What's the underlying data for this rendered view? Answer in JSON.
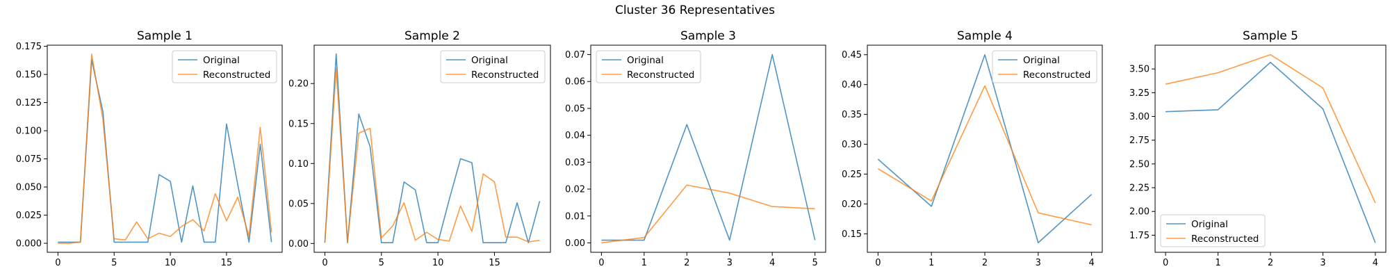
{
  "figure": {
    "title": "Cluster 36 Representatives"
  },
  "colors": {
    "original": "#1f77b4",
    "reconstructed": "#ff7f0e"
  },
  "chart_data": [
    {
      "type": "line",
      "title": "Sample 1",
      "legend": "top-right",
      "x": [
        0,
        1,
        2,
        3,
        4,
        5,
        6,
        7,
        8,
        9,
        10,
        11,
        12,
        13,
        14,
        15,
        16,
        17,
        18,
        19
      ],
      "xlim": [
        -0.95,
        19.95
      ],
      "ylim": [
        -0.008,
        0.176
      ],
      "xticks": [
        0,
        5,
        10,
        15
      ],
      "yticks": [
        0.0,
        0.025,
        0.05,
        0.075,
        0.1,
        0.125,
        0.15,
        0.175
      ],
      "ytick_decimals": 3,
      "series": [
        {
          "name": "Original",
          "values": [
            0.001,
            0.001,
            0.001,
            0.163,
            0.117,
            0.001,
            0.001,
            0.001,
            0.001,
            0.061,
            0.055,
            0.001,
            0.051,
            0.001,
            0.001,
            0.106,
            0.052,
            0.001,
            0.088,
            0.001
          ]
        },
        {
          "name": "Reconstructed",
          "values": [
            0.0,
            0.0,
            0.001,
            0.168,
            0.11,
            0.004,
            0.003,
            0.019,
            0.004,
            0.009,
            0.006,
            0.015,
            0.021,
            0.011,
            0.044,
            0.02,
            0.041,
            0.006,
            0.103,
            0.01
          ]
        }
      ]
    },
    {
      "type": "line",
      "title": "Sample 2",
      "legend": "top-right",
      "x": [
        0,
        1,
        2,
        3,
        4,
        5,
        6,
        7,
        8,
        9,
        10,
        11,
        12,
        13,
        14,
        15,
        16,
        17,
        18,
        19
      ],
      "xlim": [
        -0.95,
        19.95
      ],
      "ylim": [
        -0.011,
        0.248
      ],
      "xticks": [
        0,
        5,
        10,
        15
      ],
      "yticks": [
        0.0,
        0.05,
        0.1,
        0.15,
        0.2
      ],
      "ytick_decimals": 2,
      "series": [
        {
          "name": "Original",
          "values": [
            0.001,
            0.237,
            0.001,
            0.162,
            0.121,
            0.001,
            0.001,
            0.077,
            0.067,
            0.001,
            0.001,
            0.055,
            0.106,
            0.101,
            0.001,
            0.001,
            0.001,
            0.051,
            0.001,
            0.053
          ]
        },
        {
          "name": "Reconstructed",
          "values": [
            0.001,
            0.219,
            0.002,
            0.138,
            0.144,
            0.007,
            0.022,
            0.051,
            0.004,
            0.014,
            0.005,
            0.003,
            0.047,
            0.015,
            0.087,
            0.077,
            0.008,
            0.008,
            0.002,
            0.004
          ]
        }
      ]
    },
    {
      "type": "line",
      "title": "Sample 3",
      "legend": "top-left",
      "x": [
        0,
        1,
        2,
        3,
        4,
        5
      ],
      "xlim": [
        -0.25,
        5.25
      ],
      "ylim": [
        -0.0035,
        0.0735
      ],
      "xticks": [
        0,
        1,
        2,
        3,
        4,
        5
      ],
      "yticks": [
        0.0,
        0.01,
        0.02,
        0.03,
        0.04,
        0.05,
        0.06,
        0.07
      ],
      "ytick_decimals": 2,
      "series": [
        {
          "name": "Original",
          "values": [
            0.001,
            0.001,
            0.044,
            0.001,
            0.07,
            0.001
          ]
        },
        {
          "name": "Reconstructed",
          "values": [
            0.0,
            0.002,
            0.0215,
            0.0185,
            0.0135,
            0.0127
          ]
        }
      ]
    },
    {
      "type": "line",
      "title": "Sample 4",
      "legend": "top-right",
      "x": [
        0,
        1,
        2,
        3,
        4
      ],
      "xlim": [
        -0.2,
        4.2
      ],
      "ylim": [
        0.119,
        0.466
      ],
      "xticks": [
        0,
        1,
        2,
        3,
        4
      ],
      "yticks": [
        0.15,
        0.2,
        0.25,
        0.3,
        0.35,
        0.4,
        0.45
      ],
      "ytick_decimals": 2,
      "series": [
        {
          "name": "Original",
          "values": [
            0.275,
            0.196,
            0.45,
            0.135,
            0.216
          ]
        },
        {
          "name": "Reconstructed",
          "values": [
            0.259,
            0.205,
            0.398,
            0.185,
            0.165
          ]
        }
      ]
    },
    {
      "type": "line",
      "title": "Sample 5",
      "legend": "bottom-left",
      "x": [
        0,
        1,
        2,
        3,
        4
      ],
      "xlim": [
        -0.2,
        4.2
      ],
      "ylim": [
        1.57,
        3.75
      ],
      "xticks": [
        0,
        1,
        2,
        3,
        4
      ],
      "yticks": [
        1.75,
        2.0,
        2.25,
        2.5,
        2.75,
        3.0,
        3.25,
        3.5
      ],
      "ytick_decimals": 2,
      "series": [
        {
          "name": "Original",
          "values": [
            3.05,
            3.07,
            3.57,
            3.08,
            1.67
          ]
        },
        {
          "name": "Reconstructed",
          "values": [
            3.34,
            3.46,
            3.65,
            3.3,
            2.09
          ]
        }
      ]
    }
  ]
}
